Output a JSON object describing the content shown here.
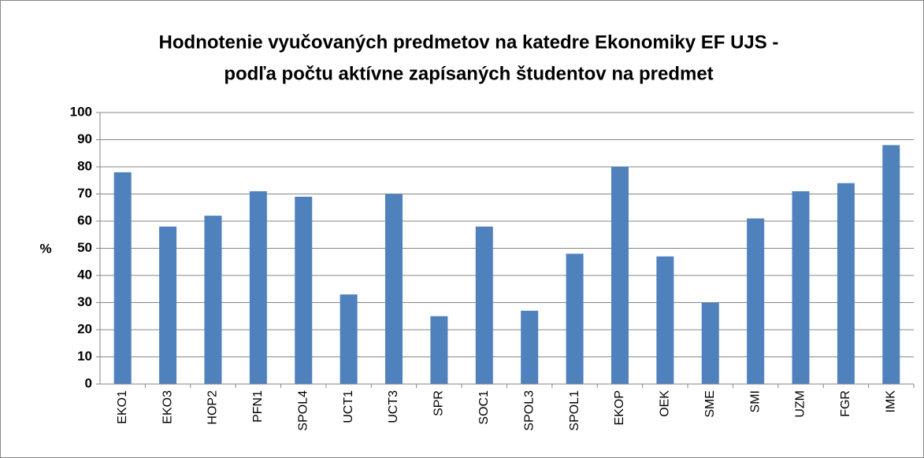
{
  "chart_data": {
    "type": "bar",
    "title": [
      "Hodnotenie vyučovaných predmetov na katedre Ekonomiky EF UJS -",
      "podľa počtu aktívne zapísaných študentov na predmet"
    ],
    "y_label": "%",
    "categories": [
      "EKO1",
      "EKO3",
      "HOP2",
      "PFN1",
      "SPOL4",
      "UCT1",
      "UCT3",
      "SPR",
      "SOC1",
      "SPOL3",
      "SPOL1",
      "EKOP",
      "OEK",
      "SME",
      "SMI",
      "UZM",
      "FGR",
      "IMK"
    ],
    "values": [
      78,
      58,
      62,
      71,
      69,
      33,
      70,
      25,
      58,
      27,
      48,
      80,
      47,
      30,
      61,
      71,
      74,
      88
    ],
    "color": "#4f81bd",
    "ylim": [
      0,
      100
    ],
    "yticks": [
      0,
      10,
      20,
      30,
      40,
      50,
      60,
      70,
      80,
      90,
      100
    ],
    "grid": true
  }
}
